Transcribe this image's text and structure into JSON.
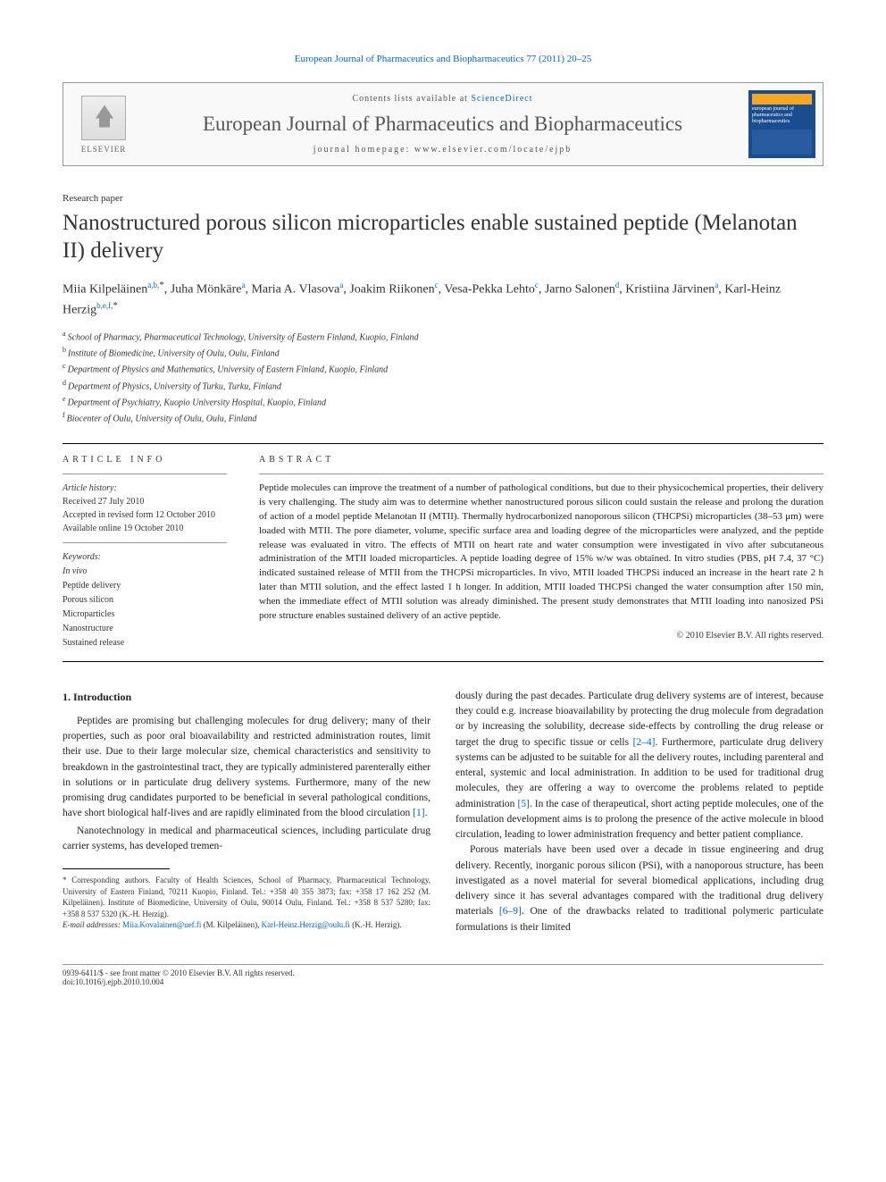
{
  "header_citation": "European Journal of Pharmaceutics and Biopharmaceutics 77 (2011) 20–25",
  "masthead": {
    "contents_label": "Contents lists available at",
    "sd_label": "ScienceDirect",
    "journal_name": "European Journal of Pharmaceutics and Biopharmaceutics",
    "homepage_label": "journal homepage:",
    "homepage_url": "www.elsevier.com/locate/ejpb",
    "logo_text": "ELSEVIER",
    "cover_text": "european journal of pharmaceutics and biopharmaceutics"
  },
  "paper_type": "Research paper",
  "title": "Nanostructured porous silicon microparticles enable sustained peptide (Melanotan II) delivery",
  "authors": [
    {
      "name": "Miia Kilpeläinen",
      "aff": "a,b,",
      "star": true
    },
    {
      "name": "Juha Mönkäre",
      "aff": "a",
      "star": false
    },
    {
      "name": "Maria A. Vlasova",
      "aff": "a",
      "star": false
    },
    {
      "name": "Joakim Riikonen",
      "aff": "c",
      "star": false
    },
    {
      "name": "Vesa-Pekka Lehto",
      "aff": "c",
      "star": false
    },
    {
      "name": "Jarno Salonen",
      "aff": "d",
      "star": false
    },
    {
      "name": "Kristiina Järvinen",
      "aff": "a",
      "star": false
    },
    {
      "name": "Karl-Heinz Herzig",
      "aff": "b,e,f,",
      "star": true
    }
  ],
  "affiliations": [
    {
      "key": "a",
      "text": "School of Pharmacy, Pharmaceutical Technology, University of Eastern Finland, Kuopio, Finland"
    },
    {
      "key": "b",
      "text": "Institute of Biomedicine, University of Oulu, Oulu, Finland"
    },
    {
      "key": "c",
      "text": "Department of Physics and Mathematics, University of Eastern Finland, Kuopio, Finland"
    },
    {
      "key": "d",
      "text": "Department of Physics, University of Turku, Turku, Finland"
    },
    {
      "key": "e",
      "text": "Department of Psychiatry, Kuopio University Hospital, Kuopio, Finland"
    },
    {
      "key": "f",
      "text": "Biocenter of Oulu, University of Oulu, Oulu, Finland"
    }
  ],
  "article_info": {
    "heading": "ARTICLE INFO",
    "history_label": "Article history:",
    "received": "Received 27 July 2010",
    "accepted": "Accepted in revised form 12 October 2010",
    "online": "Available online 19 October 2010",
    "keywords_label": "Keywords:",
    "keywords": [
      "In vivo",
      "Peptide delivery",
      "Porous silicon",
      "Microparticles",
      "Nanostructure",
      "Sustained release"
    ]
  },
  "abstract": {
    "heading": "ABSTRACT",
    "text": "Peptide molecules can improve the treatment of a number of pathological conditions, but due to their physicochemical properties, their delivery is very challenging. The study aim was to determine whether nanostructured porous silicon could sustain the release and prolong the duration of action of a model peptide Melanotan II (MTII). Thermally hydrocarbonized nanoporous silicon (THCPSi) microparticles (38–53 μm) were loaded with MTII. The pore diameter, volume, specific surface area and loading degree of the microparticles were analyzed, and the peptide release was evaluated in vitro. The effects of MTII on heart rate and water consumption were investigated in vivo after subcutaneous administration of the MTII loaded microparticles. A peptide loading degree of 15% w/w was obtained. In vitro studies (PBS, pH 7.4, 37 °C) indicated sustained release of MTII from the THCPSi microparticles. In vivo, MTII loaded THCPSi induced an increase in the heart rate 2 h later than MTII solution, and the effect lasted 1 h longer. In addition, MTII loaded THCPSi changed the water consumption after 150 min, when the immediate effect of MTII solution was already diminished. The present study demonstrates that MTII loading into nanosized PSi pore structure enables sustained delivery of an active peptide.",
    "copyright": "© 2010 Elsevier B.V. All rights reserved."
  },
  "body": {
    "section1_title": "1. Introduction",
    "col1_p1": "Peptides are promising but challenging molecules for drug delivery; many of their properties, such as poor oral bioavailability and restricted administration routes, limit their use. Due to their large molecular size, chemical characteristics and sensitivity to breakdown in the gastrointestinal tract, they are typically administered parenterally either in solutions or in particulate drug delivery systems. Furthermore, many of the new promising drug candidates purported to be beneficial in several pathological conditions, have short biological half-lives and are rapidly eliminated from the blood circulation ",
    "col1_p1_cite": "[1]",
    "col1_p1_end": ".",
    "col1_p2": "Nanotechnology in medical and pharmaceutical sciences, including particulate drug carrier systems, has developed tremen-",
    "col2_p1a": "dously during the past decades. Particulate drug delivery systems are of interest, because they could e.g. increase bioavailability by protecting the drug molecule from degradation or by increasing the solubility, decrease side-effects by controlling the drug release or target the drug to specific tissue or cells ",
    "col2_p1_cite1": "[2–4]",
    "col2_p1b": ". Furthermore, particulate drug delivery systems can be adjusted to be suitable for all the delivery routes, including parenteral and enteral, systemic and local administration. In addition to be used for traditional drug molecules, they are offering a way to overcome the problems related to peptide administration ",
    "col2_p1_cite2": "[5]",
    "col2_p1c": ". In the case of therapeutical, short acting peptide molecules, one of the formulation development aims is to prolong the presence of the active molecule in blood circulation, leading to lower administration frequency and better patient compliance.",
    "col2_p2a": "Porous materials have been used over a decade in tissue engineering and drug delivery. Recently, inorganic porous silicon (PSi), with a nanoporous structure, has been investigated as a novel material for several biomedical applications, including drug delivery since it has several advantages compared with the traditional drug delivery materials ",
    "col2_p2_cite": "[6–9]",
    "col2_p2b": ". One of the drawbacks related to traditional polymeric particulate formulations is their limited"
  },
  "footnote": {
    "corresponding": "* Corresponding authors. Faculty of Health Sciences, School of Pharmacy, Pharmaceutical Technology, University of Eastern Finland, 70211 Kuopio, Finland. Tel.: +358 40 355 3873; fax: +358 17 162 252 (M. Kilpeläinen). Institute of Biomedicine, University of Oulu, 90014 Oulu, Finland. Tel.: +358 8 537 5280; fax: +358 8 537 5320 (K.-H. Herzig).",
    "email_label": "E-mail addresses:",
    "email1": "Miia.Kovalainen@uef.fi",
    "email1_name": " (M. Kilpeläinen), ",
    "email2": "Karl-Heinz.Herzig@oulu.fi",
    "email2_name": " (K.-H. Herzig)."
  },
  "footer": {
    "issn": "0939-6411/$ - see front matter © 2010 Elsevier B.V. All rights reserved.",
    "doi": "doi:10.1016/j.ejpb.2010.10.004"
  },
  "colors": {
    "link": "#0066cc",
    "text": "#222222",
    "muted": "#555555",
    "cover_bg": "#1a4d8f",
    "cover_accent": "#f5a623"
  }
}
